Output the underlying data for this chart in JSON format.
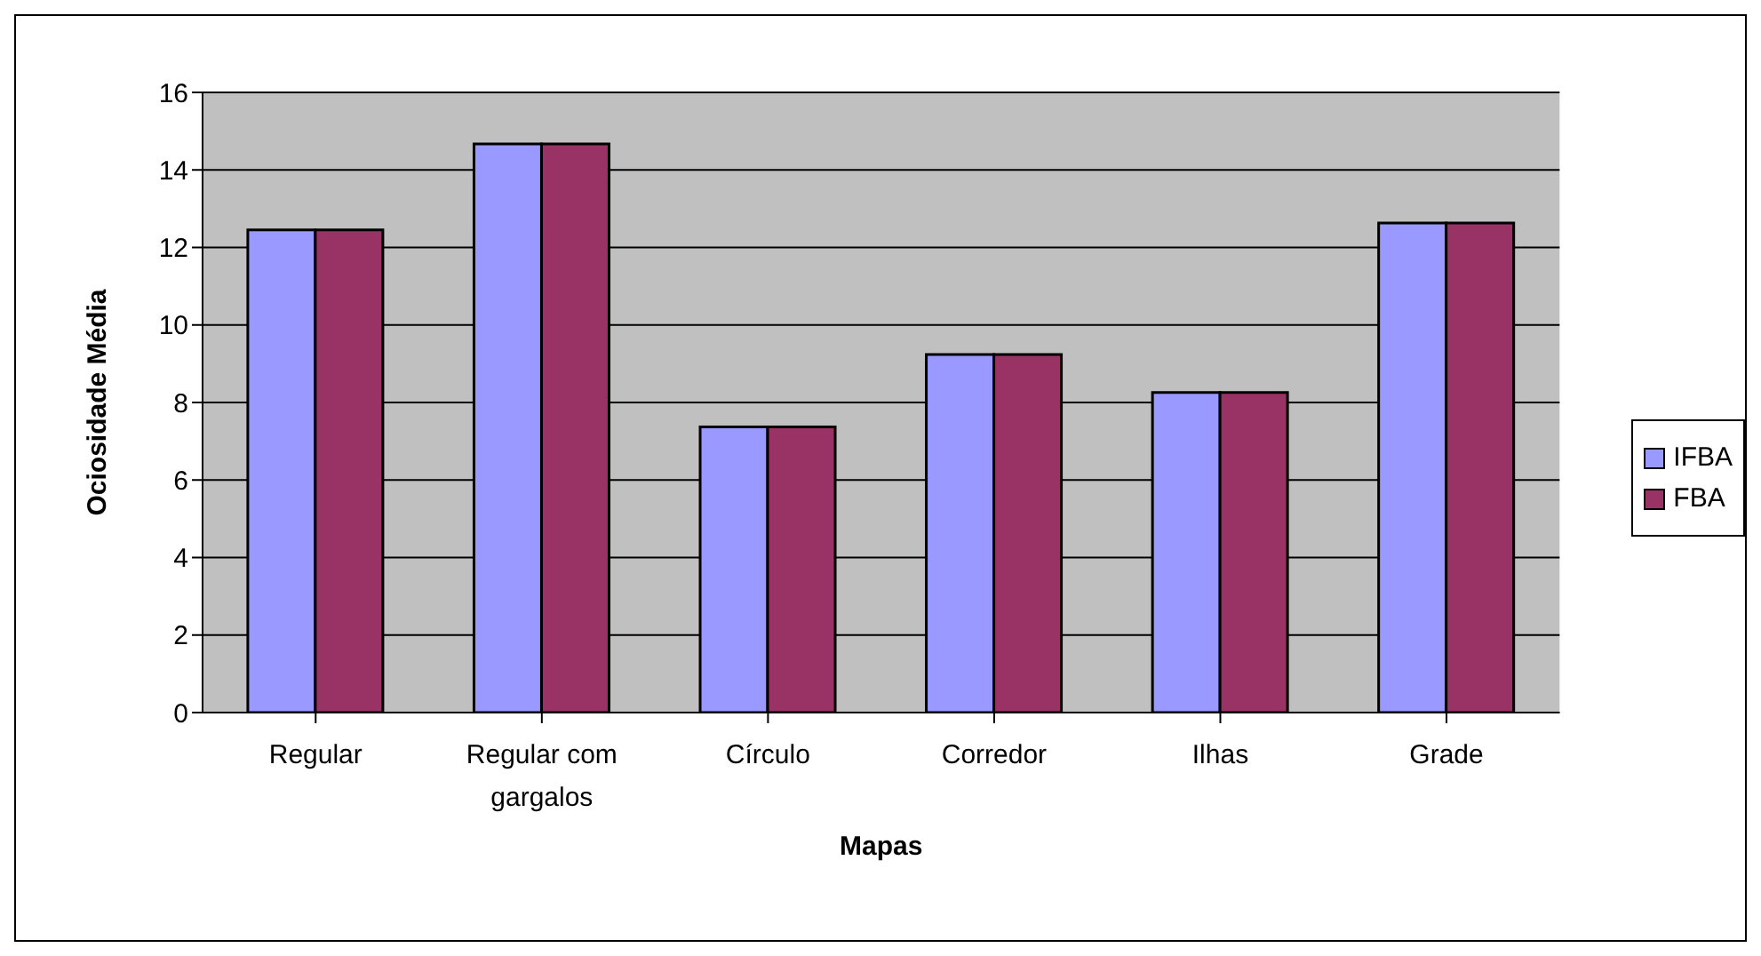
{
  "chart_data": {
    "type": "bar",
    "xlabel": "Mapas",
    "ylabel": "Ociosidade Média",
    "categories": [
      "Regular",
      "Regular com gargalos",
      "Círculo",
      "Corredor",
      "Ilhas",
      "Grade"
    ],
    "series": [
      {
        "name": "IFBA",
        "color": "#9999ff",
        "values": [
          12.45,
          14.67,
          7.37,
          9.24,
          8.26,
          12.63
        ]
      },
      {
        "name": "FBA",
        "color": "#993366",
        "values": [
          12.45,
          14.67,
          7.37,
          9.24,
          8.26,
          12.63
        ]
      }
    ],
    "ylim": [
      0,
      16
    ],
    "yticks": [
      0,
      2,
      4,
      6,
      8,
      10,
      12,
      14,
      16
    ],
    "grid": "y",
    "legend": "right"
  }
}
